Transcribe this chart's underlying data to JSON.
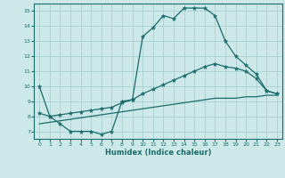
{
  "xlabel": "Humidex (Indice chaleur)",
  "bg_color": "#cce8e8",
  "line_color": "#1a6b6b",
  "grid_color": "#aacfcf",
  "line1_x": [
    0,
    1,
    2,
    3,
    4,
    5,
    6,
    7,
    8,
    9,
    10,
    11,
    12,
    13,
    14,
    15,
    16,
    17,
    18,
    19,
    20,
    21,
    22,
    23
  ],
  "line1_y": [
    10.0,
    8.0,
    7.5,
    7.0,
    7.0,
    7.0,
    6.8,
    7.0,
    9.0,
    9.1,
    13.3,
    13.9,
    14.7,
    14.5,
    15.2,
    15.2,
    15.2,
    14.7,
    13.0,
    12.0,
    11.4,
    10.8,
    9.7,
    9.5
  ],
  "line2_x": [
    0,
    1,
    2,
    3,
    4,
    5,
    6,
    7,
    8,
    9,
    10,
    11,
    12,
    13,
    14,
    15,
    16,
    17,
    18,
    19,
    20,
    21,
    22,
    23
  ],
  "line2_y": [
    8.2,
    8.0,
    8.1,
    8.2,
    8.3,
    8.4,
    8.5,
    8.6,
    8.9,
    9.1,
    9.5,
    9.8,
    10.1,
    10.4,
    10.7,
    11.0,
    11.3,
    11.5,
    11.3,
    11.2,
    11.0,
    10.5,
    9.7,
    9.5
  ],
  "line3_x": [
    0,
    1,
    2,
    3,
    4,
    5,
    6,
    7,
    8,
    9,
    10,
    11,
    12,
    13,
    14,
    15,
    16,
    17,
    18,
    19,
    20,
    21,
    22,
    23
  ],
  "line3_y": [
    7.5,
    7.6,
    7.7,
    7.8,
    7.9,
    8.0,
    8.1,
    8.2,
    8.3,
    8.4,
    8.5,
    8.6,
    8.7,
    8.8,
    8.9,
    9.0,
    9.1,
    9.2,
    9.2,
    9.2,
    9.3,
    9.3,
    9.4,
    9.4
  ],
  "xlim": [
    -0.5,
    23.5
  ],
  "ylim": [
    6.5,
    15.5
  ],
  "yticks": [
    7,
    8,
    9,
    10,
    11,
    12,
    13,
    14,
    15
  ],
  "xticks": [
    0,
    1,
    2,
    3,
    4,
    5,
    6,
    7,
    8,
    9,
    10,
    11,
    12,
    13,
    14,
    15,
    16,
    17,
    18,
    19,
    20,
    21,
    22,
    23
  ]
}
